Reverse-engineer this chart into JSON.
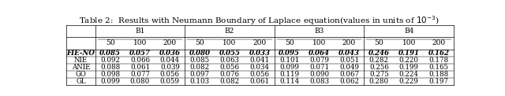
{
  "title": "Table 2:  Results with Neumann Boundary of Laplace equation(values in units of 10⁻³)",
  "title_plain": "Table 2:  Results with Neumann Boundary of Laplace equation(values in units of $10^{-3}$)",
  "col_groups": [
    "B1",
    "B2",
    "B3",
    "B4"
  ],
  "sub_cols": [
    "50",
    "100",
    "200"
  ],
  "row_labels": [
    "FIE-NO",
    "NIE",
    "ANIE",
    "GO",
    "GL"
  ],
  "bold_row": 0,
  "data": [
    [
      "0.085",
      "0.057",
      "0.036",
      "0.080",
      "0.055",
      "0.033",
      "0.095",
      "0.064",
      "0.043",
      "0.246",
      "0.191",
      "0.162"
    ],
    [
      "0.092",
      "0.066",
      "0.044",
      "0.085",
      "0.063",
      "0.041",
      "0.101",
      "0.079",
      "0.051",
      "0.282",
      "0.220",
      "0.178"
    ],
    [
      "0.088",
      "0.061",
      "0.039",
      "0.082",
      "0.056",
      "0.034",
      "0.099",
      "0.071",
      "0.049",
      "0.256",
      "0.199",
      "0.165"
    ],
    [
      "0.098",
      "0.077",
      "0.056",
      "0.097",
      "0.076",
      "0.056",
      "0.119",
      "0.090",
      "0.067",
      "0.275",
      "0.224",
      "0.188"
    ],
    [
      "0.099",
      "0.080",
      "0.059",
      "0.103",
      "0.082",
      "0.061",
      "0.114",
      "0.083",
      "0.062",
      "0.280",
      "0.229",
      "0.197"
    ]
  ],
  "bg_color": "#ffffff",
  "text_color": "#000000",
  "line_color": "#000000",
  "title_fontsize": 7.5,
  "cell_fontsize": 6.2,
  "header_fontsize": 6.5,
  "lw": 0.5
}
